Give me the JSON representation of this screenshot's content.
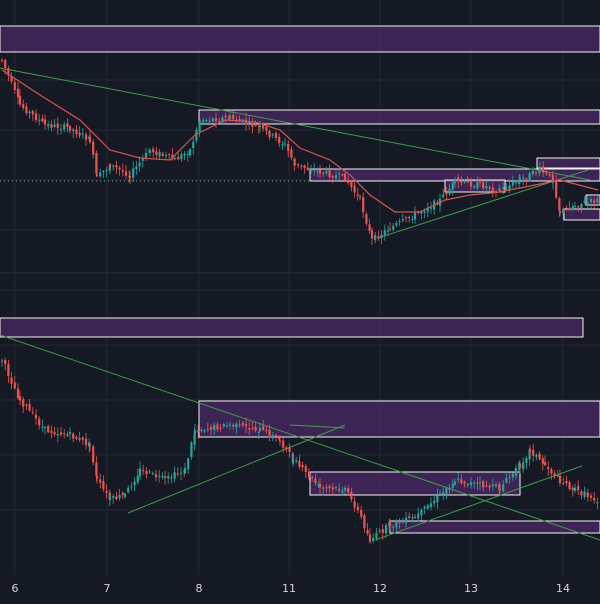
{
  "colors": {
    "background": "#151924",
    "grid": "#232734",
    "up": "#26a69a",
    "down": "#ef5350",
    "zone_fill": "#4a2a66",
    "zone_stroke": "#f2f2f2",
    "trendline": "#3f9c4a",
    "moving_average": "#d9534f",
    "axis_text": "#d1d4dc",
    "price_line": "#5aa0a8"
  },
  "chart_data": [
    {
      "type": "candlestick",
      "panel": "top",
      "x_axis_day_labels": [
        "6",
        "7",
        "8",
        "11",
        "12",
        "13",
        "14"
      ],
      "has_moving_average": true,
      "has_dotted_price_line": true,
      "shaded_zones": 4,
      "trendlines": 2,
      "grid": true
    },
    {
      "type": "candlestick",
      "panel": "bottom",
      "x_axis_day_labels": [
        "6",
        "7",
        "8",
        "11",
        "12",
        "13",
        "14"
      ],
      "has_moving_average": false,
      "shaded_zones": 4,
      "trendlines": 3,
      "grid": true
    }
  ],
  "x_axis": {
    "labels": [
      "6",
      "7",
      "8",
      "11",
      "12",
      "13",
      "14"
    ]
  }
}
